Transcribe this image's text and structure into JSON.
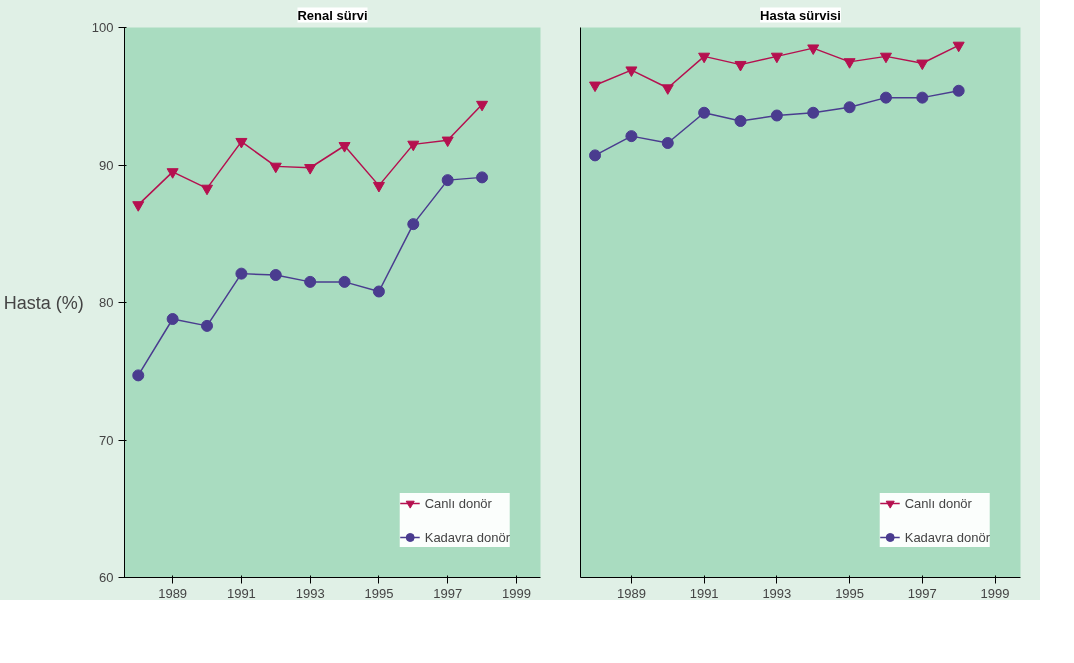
{
  "chart_data": [
    {
      "type": "line",
      "title": "Renal sürvi",
      "ylabel": "Hasta (%)",
      "x": [
        1988,
        1989,
        1990,
        1991,
        1992,
        1993,
        1994,
        1995,
        1996,
        1997,
        1998
      ],
      "xlim": [
        1987.6,
        1999.7
      ],
      "xticks": [
        1989,
        1991,
        1993,
        1995,
        1997,
        1999
      ],
      "ylim": [
        60,
        100
      ],
      "yticks": [
        60,
        70,
        80,
        90,
        100
      ],
      "grid": false,
      "legend": "bottom right",
      "series": [
        {
          "name": "Canlı donör",
          "color": "#b5104f",
          "marker": "triangle",
          "values": [
            87.1,
            89.5,
            88.3,
            91.7,
            89.9,
            89.8,
            91.4,
            88.5,
            91.5,
            91.8,
            94.4
          ]
        },
        {
          "name": "Kadavra donör",
          "color": "#4a3c8f",
          "marker": "circle",
          "values": [
            74.7,
            78.8,
            78.3,
            82.1,
            82.0,
            81.5,
            81.5,
            80.8,
            85.7,
            88.9,
            89.1
          ]
        }
      ]
    },
    {
      "type": "line",
      "title": "Hasta sürvisi",
      "x": [
        1988,
        1989,
        1990,
        1991,
        1992,
        1993,
        1994,
        1995,
        1996,
        1997,
        1998
      ],
      "xlim": [
        1987.6,
        1999.7
      ],
      "xticks": [
        1989,
        1991,
        1993,
        1995,
        1997,
        1999
      ],
      "ylim": [
        60,
        100
      ],
      "yticks": [
        60,
        70,
        80,
        90,
        100
      ],
      "tick_labels": "x",
      "grid": false,
      "legend": "bottom right",
      "series": [
        {
          "name": "Canlı donör",
          "color": "#b5104f",
          "marker": "triangle",
          "values": [
            95.8,
            96.9,
            95.6,
            97.9,
            97.3,
            97.9,
            98.5,
            97.5,
            97.9,
            97.4,
            98.7
          ]
        },
        {
          "name": "Kadavra donör",
          "color": "#4a3c8f",
          "marker": "circle",
          "values": [
            90.7,
            92.1,
            91.6,
            93.8,
            93.2,
            93.6,
            93.8,
            94.2,
            94.9,
            94.9,
            95.4
          ]
        }
      ]
    }
  ]
}
